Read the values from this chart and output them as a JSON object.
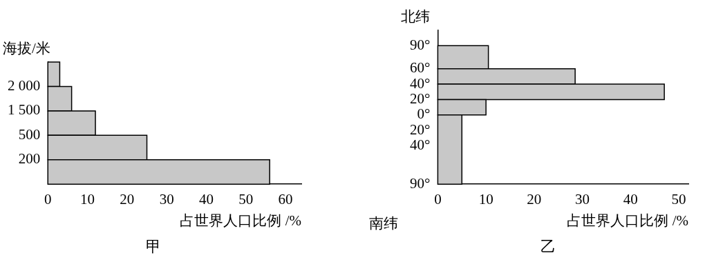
{
  "chart_data": [
    {
      "type": "bar",
      "orientation": "horizontal",
      "title": "甲",
      "xlabel": "占世界人口比例 /%",
      "ylabel": "海拔/米",
      "categories": [
        null,
        "2 000",
        "1 500",
        "500",
        "200"
      ],
      "values": [
        3,
        6,
        12,
        25,
        56
      ],
      "color": "#c8c8c8",
      "xlim": [
        0,
        64
      ],
      "xticks": [
        0,
        10,
        20,
        30,
        40,
        50,
        60
      ]
    },
    {
      "type": "histogram",
      "orientation": "horizontal",
      "title": "乙",
      "xlabel": "占世界人口比例 /%",
      "ylabel": "北纬",
      "annotations": [
        "南纬"
      ],
      "bins": [
        90,
        60,
        40,
        20,
        0,
        -90
      ],
      "values": [
        10.5,
        28.5,
        47,
        10,
        5
      ],
      "color": "#c8c8c8",
      "xlim": [
        0,
        52
      ],
      "xticks": [
        0,
        10,
        20,
        30,
        40,
        50
      ],
      "ylim": [
        -90,
        110
      ],
      "yticks": [
        {
          "value": 90,
          "label": "90°"
        },
        {
          "value": 60,
          "label": "60°"
        },
        {
          "value": 40,
          "label": "40°"
        },
        {
          "value": 20,
          "label": "20°"
        },
        {
          "value": 0,
          "label": "0°"
        },
        {
          "value": -20,
          "label": "20°"
        },
        {
          "value": -40,
          "label": "40°"
        },
        {
          "value": -90,
          "label": "90°"
        }
      ]
    }
  ]
}
